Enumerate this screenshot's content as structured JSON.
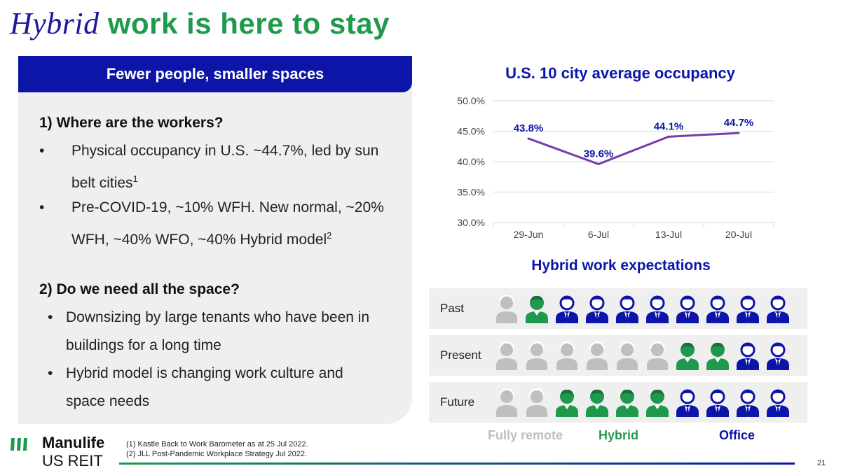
{
  "title": {
    "part1": "Hybrid",
    "part2": "work is here to stay"
  },
  "panel": {
    "header": "Fewer people, smaller spaces",
    "q1": "1) Where are the workers?",
    "q1_bullets": [
      {
        "line1": "Physical occupancy in U.S. ~44.7%, led by sun",
        "line2": "belt cities",
        "sup": "1"
      },
      {
        "line1": "Pre-COVID-19, ~10% WFH. New normal, ~20%",
        "line2": "WFH, ~40% WFO, ~40% Hybrid model",
        "sup": "2"
      }
    ],
    "q2": "2) Do we need all the space?",
    "q2_bullets": [
      {
        "line1": "Downsizing by large tenants who have been in",
        "line2": "buildings for a long time"
      },
      {
        "line1": "Hybrid model is changing work culture and",
        "line2": "space needs"
      }
    ],
    "bullet_char": "•"
  },
  "chart_data": {
    "type": "line",
    "title": "U.S. 10 city average occupancy",
    "categories": [
      "29-Jun",
      "6-Jul",
      "13-Jul",
      "20-Jul"
    ],
    "values": [
      43.8,
      39.6,
      44.1,
      44.7
    ],
    "value_labels": [
      "43.8%",
      "39.6%",
      "44.1%",
      "44.7%"
    ],
    "ylim": [
      30.0,
      50.0
    ],
    "yticks": [
      "30.0%",
      "35.0%",
      "40.0%",
      "45.0%",
      "50.0%"
    ],
    "grid": true,
    "line_color": "#7a3aa8",
    "label_color": "#0c15a8"
  },
  "hybrid": {
    "title": "Hybrid work expectations",
    "rows": [
      {
        "label": "Past",
        "remote": 1,
        "hybrid": 1,
        "office": 8
      },
      {
        "label": "Present",
        "remote": 6,
        "hybrid": 2,
        "office": 2
      },
      {
        "label": "Future",
        "remote": 2,
        "hybrid": 4,
        "office": 4
      }
    ],
    "legend": {
      "remote": "Fully remote",
      "hybrid": "Hybrid",
      "office": "Office"
    },
    "colors": {
      "remote": "#bfbfbf",
      "hybrid": "#1f9a4c",
      "office": "#0c15a8"
    }
  },
  "footer": {
    "logo_name": "Manulife",
    "logo_sub": "US REIT",
    "note1": "(1)  Kastle Back to Work Barometer as at 25 Jul 2022.",
    "note2": "(2) JLL Post-Pandemic Workplace Strategy Jul 2022.",
    "page": "21"
  }
}
